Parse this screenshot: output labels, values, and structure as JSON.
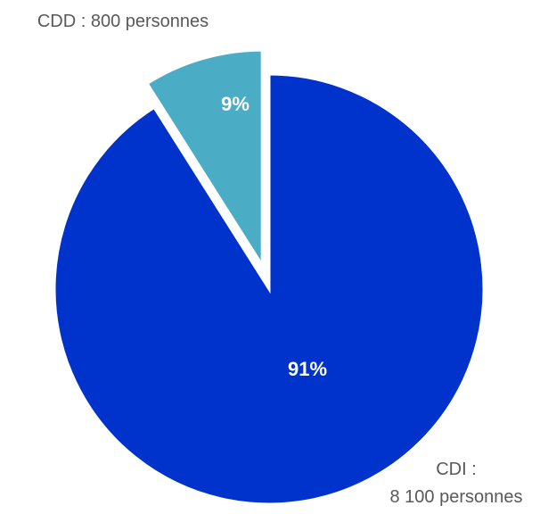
{
  "chart_data": {
    "type": "pie",
    "slices": [
      {
        "label_lines": [
          "CDD : 800 personnes"
        ],
        "value": 800,
        "percent": 9,
        "percent_label": "9%",
        "color": "#4BACC6",
        "exploded": true
      },
      {
        "label_lines": [
          "CDI :",
          "8 100 personnes"
        ],
        "value": 8100,
        "percent": 91,
        "percent_label": "91%",
        "color": "#0033CC",
        "exploded": false
      }
    ],
    "title": "",
    "legend": "none"
  }
}
